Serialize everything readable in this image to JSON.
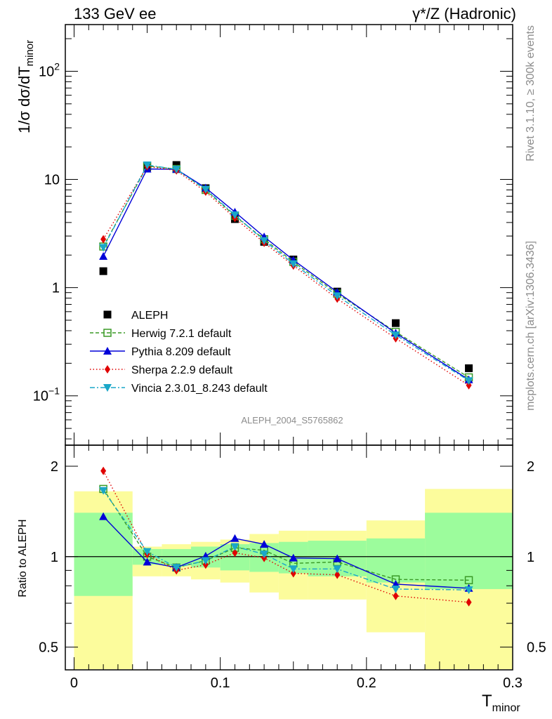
{
  "header": {
    "left": "133 GeV ee",
    "right": "γ*/Z (Hadronic)"
  },
  "side_labels": {
    "top": "Rivet 3.1.10, ≥ 300k events",
    "bottom": "mcplots.cern.ch [arXiv:1306.3436]"
  },
  "analysis_label": "ALEPH_2004_S5765862",
  "colors": {
    "data": "#000000",
    "herwig": "#3a9a27",
    "pythia": "#0000d8",
    "sherpa": "#e00000",
    "vincia": "#1aa7c8",
    "band_inner": "#9cfc9c",
    "band_outer": "#fcfc9c"
  },
  "chart_data": [
    {
      "type": "scatter",
      "panel": "main",
      "xlabel": "T",
      "xlabel_sub": "minor",
      "ylabel": "1/σ  dσ/dT",
      "ylabel_sub": "minor",
      "yscale": "log",
      "xlim": [
        -0.006,
        0.3
      ],
      "ylim": [
        0.035,
        270
      ],
      "yticks": [
        {
          "value": 0.1,
          "mantissa": "10",
          "exp": "−1"
        },
        {
          "value": 1,
          "mantissa": "1",
          "exp": ""
        },
        {
          "value": 10,
          "mantissa": "10",
          "exp": ""
        },
        {
          "value": 100,
          "mantissa": "10",
          "exp": "2"
        }
      ],
      "legend_position": "lower-left",
      "x": [
        0.02,
        0.05,
        0.07,
        0.09,
        0.11,
        0.13,
        0.15,
        0.18,
        0.22,
        0.27
      ],
      "series": [
        {
          "key": "aleph",
          "name": "ALEPH",
          "marker": "square",
          "line": "none",
          "values": [
            1.42,
            13.0,
            13.6,
            8.3,
            4.3,
            2.65,
            1.82,
            0.92,
            0.47,
            0.18
          ]
        },
        {
          "key": "herwig",
          "name": "Herwig 7.2.1 default",
          "marker": "open-square",
          "line": "dashed",
          "values": [
            2.4,
            13.3,
            12.5,
            8.0,
            4.6,
            2.8,
            1.73,
            0.88,
            0.39,
            0.148
          ]
        },
        {
          "key": "pythia",
          "name": "Pythia 8.209 default",
          "marker": "triangle-up",
          "line": "solid",
          "values": [
            1.95,
            12.5,
            12.4,
            8.35,
            5.0,
            2.95,
            1.8,
            0.91,
            0.38,
            0.141
          ]
        },
        {
          "key": "sherpa",
          "name": "Sherpa 2.2.9 default",
          "marker": "diamond",
          "line": "dotted",
          "values": [
            2.8,
            13.2,
            12.1,
            7.7,
            4.4,
            2.6,
            1.6,
            0.79,
            0.34,
            0.125
          ]
        },
        {
          "key": "vincia",
          "name": "Vincia 2.3.01_8.243 default",
          "marker": "triangle-down",
          "line": "dashdot",
          "values": [
            2.35,
            13.6,
            12.4,
            8.1,
            4.7,
            2.72,
            1.66,
            0.84,
            0.365,
            0.138
          ]
        }
      ]
    },
    {
      "type": "scatter",
      "panel": "ratio",
      "ylabel": "Ratio to ALEPH",
      "yscale": "log",
      "xlim": [
        -0.006,
        0.3
      ],
      "ylim": [
        0.42,
        2.35
      ],
      "xticks": [
        0,
        0.1,
        0.2,
        0.3
      ],
      "xtick_labels": [
        "0",
        "0.1",
        "0.2",
        "0.3"
      ],
      "yticks": [
        0.5,
        1,
        2
      ],
      "ytick_labels": [
        "0.5",
        "1",
        "2"
      ],
      "bins": [
        [
          0.0,
          0.04
        ],
        [
          0.04,
          0.06
        ],
        [
          0.06,
          0.08
        ],
        [
          0.08,
          0.1
        ],
        [
          0.1,
          0.12
        ],
        [
          0.12,
          0.14
        ],
        [
          0.14,
          0.16
        ],
        [
          0.16,
          0.2
        ],
        [
          0.2,
          0.24
        ],
        [
          0.24,
          0.3
        ]
      ],
      "band_inner": [
        [
          0.74,
          1.4
        ],
        [
          0.94,
          1.06
        ],
        [
          0.94,
          1.06
        ],
        [
          0.92,
          1.08
        ],
        [
          0.9,
          1.1
        ],
        [
          0.89,
          1.11
        ],
        [
          0.88,
          1.12
        ],
        [
          0.86,
          1.13
        ],
        [
          0.82,
          1.15
        ],
        [
          0.78,
          1.4
        ]
      ],
      "band_outer": [
        [
          0.35,
          1.65
        ],
        [
          0.86,
          1.08
        ],
        [
          0.86,
          1.1
        ],
        [
          0.84,
          1.12
        ],
        [
          0.82,
          1.14
        ],
        [
          0.76,
          1.19
        ],
        [
          0.72,
          1.22
        ],
        [
          0.72,
          1.22
        ],
        [
          0.56,
          1.32
        ],
        [
          0.35,
          1.68
        ]
      ],
      "x": [
        0.02,
        0.05,
        0.07,
        0.09,
        0.11,
        0.13,
        0.15,
        0.18,
        0.22,
        0.27
      ],
      "series": [
        {
          "key": "herwig",
          "values": [
            1.68,
            1.0,
            0.92,
            0.97,
            1.07,
            1.05,
            0.95,
            0.96,
            0.84,
            0.835
          ]
        },
        {
          "key": "pythia",
          "values": [
            1.36,
            0.96,
            0.92,
            1.005,
            1.15,
            1.1,
            0.99,
            0.985,
            0.81,
            0.785
          ]
        },
        {
          "key": "sherpa",
          "values": [
            1.93,
            1.02,
            0.9,
            0.94,
            1.03,
            0.99,
            0.88,
            0.87,
            0.74,
            0.705
          ]
        },
        {
          "key": "vincia",
          "values": [
            1.66,
            1.04,
            0.92,
            0.97,
            1.08,
            1.02,
            0.91,
            0.91,
            0.78,
            0.775
          ]
        }
      ]
    }
  ]
}
